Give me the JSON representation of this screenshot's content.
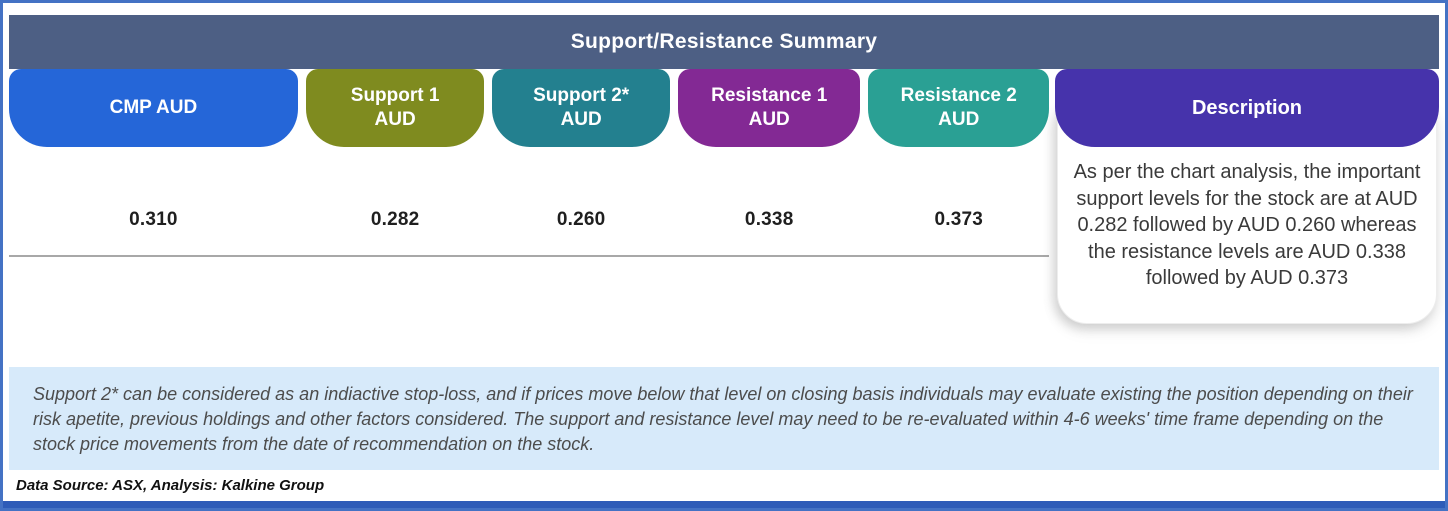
{
  "header": {
    "title": "Support/Resistance Summary",
    "bg_color": "#4d5f84"
  },
  "table": {
    "columns": [
      {
        "label_line1": "CMP AUD",
        "label_line2": "",
        "color": "#2566d8",
        "value": "0.310"
      },
      {
        "label_line1": "Support 1",
        "label_line2": "AUD",
        "color": "#7f8b1f",
        "value": "0.282"
      },
      {
        "label_line1": "Support 2*",
        "label_line2": "AUD",
        "color": "#23808f",
        "value": "0.260"
      },
      {
        "label_line1": "Resistance 1",
        "label_line2": "AUD",
        "color": "#832994",
        "value": "0.338"
      },
      {
        "label_line1": "Resistance 2",
        "label_line2": "AUD",
        "color": "#2aa094",
        "value": "0.373"
      }
    ],
    "description_column": {
      "label": "Description",
      "color": "#4633ab",
      "text": "As per the chart analysis, the important support levels for the stock are at AUD 0.282 followed by AUD 0.260 whereas the resistance levels are AUD 0.338 followed by AUD 0.373"
    }
  },
  "note": {
    "text": "Support 2* can be considered as an indiactive stop-loss, and if prices move below that level on closing basis individuals may evaluate existing the position depending on their risk apetite, previous holdings and other factors considered. The support and resistance level may need to be re-evaluated within 4-6 weeks' time frame depending on the stock price movements from  the date of recommendation on the stock.",
    "bg_color": "#d7eafa"
  },
  "footer": {
    "source": "Data Source: ASX, Analysis: Kalkine Group"
  },
  "chart_data": {
    "type": "table",
    "title": "Support/Resistance Summary",
    "columns": [
      "CMP AUD",
      "Support 1 AUD",
      "Support 2* AUD",
      "Resistance 1 AUD",
      "Resistance 2 AUD",
      "Description"
    ],
    "rows": [
      [
        "0.310",
        "0.282",
        "0.260",
        "0.338",
        "0.373",
        "As per the chart analysis, the important support levels for the stock are at AUD 0.282 followed by AUD 0.260 whereas the resistance levels are AUD 0.338 followed by AUD 0.373"
      ]
    ]
  }
}
